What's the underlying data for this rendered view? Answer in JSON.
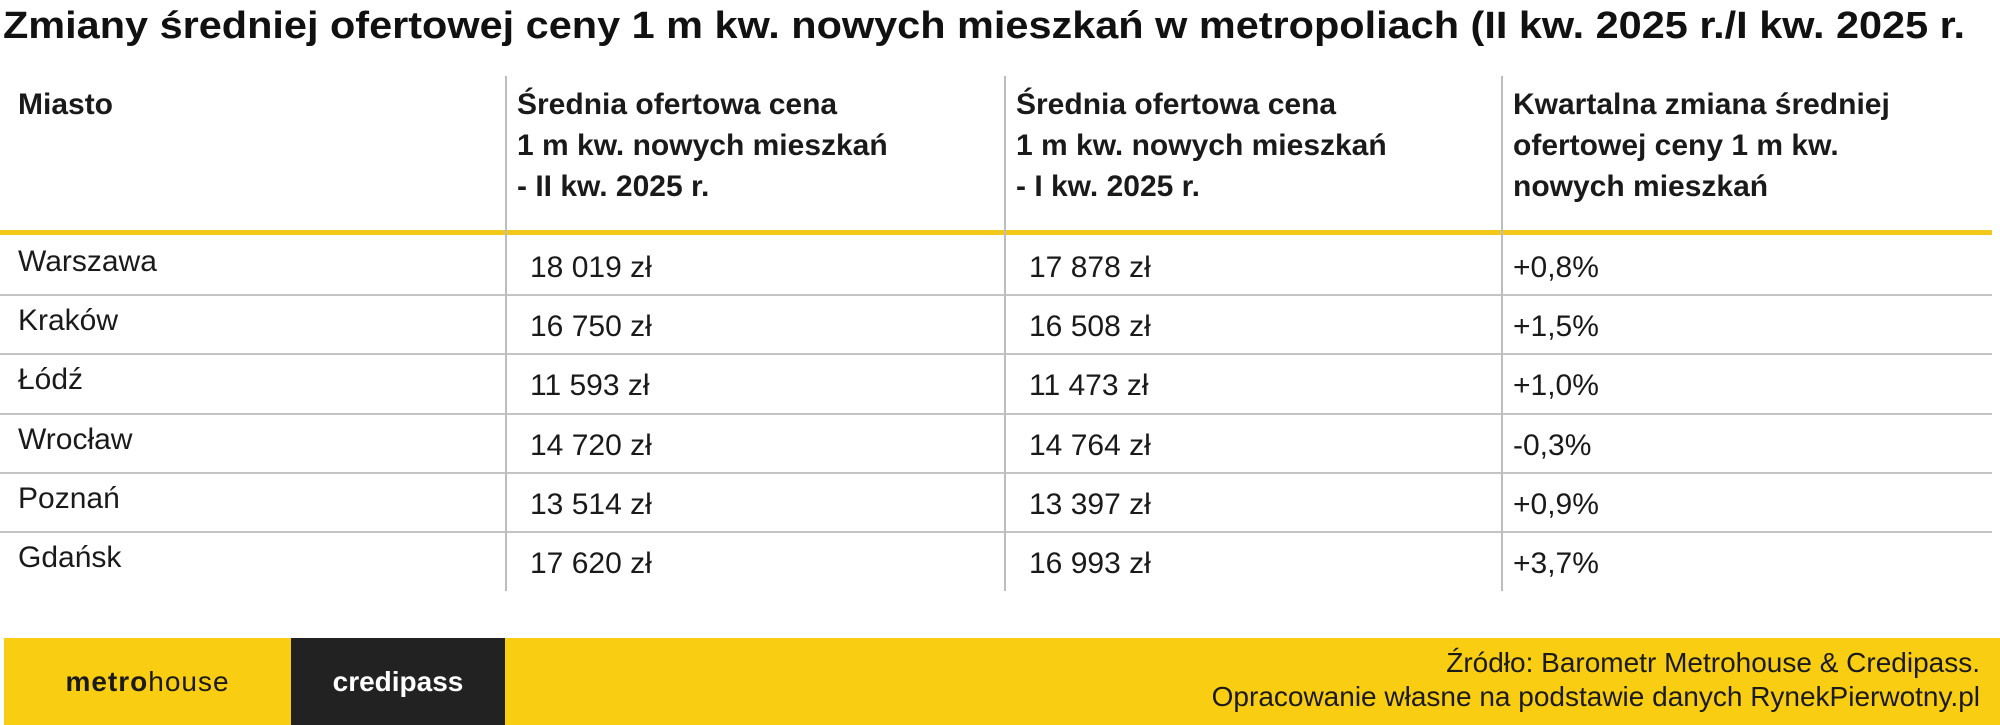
{
  "title": "Zmiany średniej ofertowej ceny 1 m kw. nowych mieszkań w metropoliach (II kw. 2025 r./I kw. 2025 r.",
  "table": {
    "headers": [
      [
        "Miasto"
      ],
      [
        "Średnia ofertowa cena",
        "1 m kw.  nowych mieszkań",
        "- II kw. 2025 r."
      ],
      [
        "Średnia ofertowa cena",
        "1 m kw.  nowych mieszkań",
        "- I kw. 2025 r."
      ],
      [
        "Kwartalna zmiana średniej",
        "ofertowej ceny  1 m kw.",
        "nowych mieszkań"
      ]
    ],
    "rows": [
      [
        "Warszawa",
        "18 019 zł",
        "17 878 zł",
        "+0,8%"
      ],
      [
        "Kraków",
        "16 750 zł",
        "16 508 zł",
        "+1,5%"
      ],
      [
        "Łódź",
        "11 593 zł",
        "11 473 zł",
        "+1,0%"
      ],
      [
        "Wrocław",
        "14 720 zł",
        "14 764 zł",
        "-0,3%"
      ],
      [
        "Poznań",
        "13 514 zł",
        "13 397 zł",
        "+0,9%"
      ],
      [
        "Gdańsk",
        "17 620 zł",
        "16 993 zł",
        "+3,7%"
      ]
    ]
  },
  "footer": {
    "logo_metrohouse": [
      "metro",
      "house"
    ],
    "logo_credipass": "credipass",
    "source": [
      "Źródło: Barometr Metrohouse & Credipass.",
      "Opracowanie własne na podstawie danych RynekPierwotny.pl"
    ]
  }
}
